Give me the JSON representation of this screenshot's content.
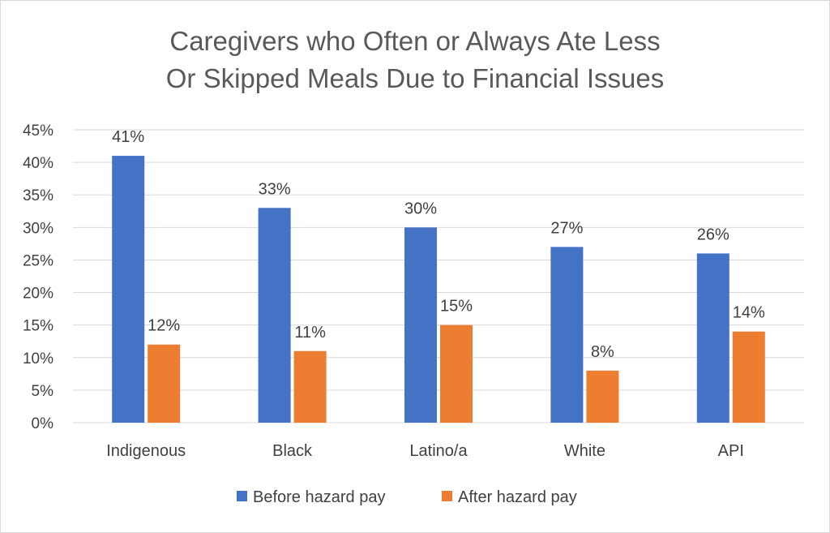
{
  "chart_data": {
    "type": "bar",
    "title_lines": [
      "Caregivers who Often or Always Ate Less",
      "Or Skipped Meals Due to Financial Issues"
    ],
    "categories": [
      "Indigenous",
      "Black",
      "Latino/a",
      "White",
      "API"
    ],
    "series": [
      {
        "name": "Before hazard pay",
        "color": "#4472c4",
        "values": [
          41,
          33,
          30,
          27,
          26
        ],
        "labels": [
          "41%",
          "33%",
          "30%",
          "27%",
          "26%"
        ]
      },
      {
        "name": "After hazard pay",
        "color": "#ed7d31",
        "values": [
          12,
          11,
          15,
          8,
          14
        ],
        "labels": [
          "12%",
          "11%",
          "15%",
          "8%",
          "14%"
        ]
      }
    ],
    "yticks": [
      "0%",
      "5%",
      "10%",
      "15%",
      "20%",
      "25%",
      "30%",
      "35%",
      "40%",
      "45%"
    ],
    "ylim": [
      0,
      45
    ],
    "grid": true,
    "legend_position": "bottom"
  }
}
